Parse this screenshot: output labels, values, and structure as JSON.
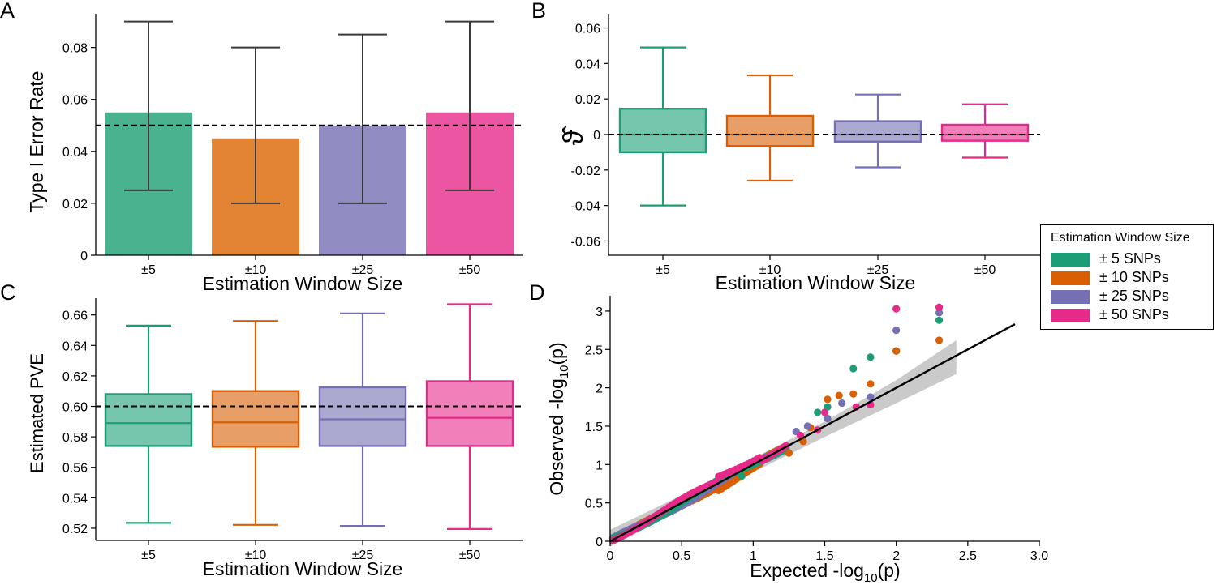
{
  "colors": {
    "green": "#1b9e77",
    "orange": "#d95f02",
    "purple": "#7570b3",
    "pink": "#e7298a",
    "green_fill": "#4bb290",
    "orange_fill": "#e38434",
    "purple_fill": "#918dc2",
    "pink_fill": "#ec55a1"
  },
  "chart_data": [
    {
      "panel": "A",
      "type": "bar",
      "xlabel": "Estimation Window Size",
      "ylabel": "Type I Error Rate",
      "categories": [
        "±5",
        "±10",
        "±25",
        "±50"
      ],
      "values": [
        0.055,
        0.045,
        0.05,
        0.055
      ],
      "error_low": [
        0.025,
        0.02,
        0.02,
        0.025
      ],
      "error_high": [
        0.09,
        0.08,
        0.085,
        0.09
      ],
      "ylim": [
        0,
        0.093
      ],
      "yticks": [
        0,
        0.02,
        0.04,
        0.06,
        0.08
      ],
      "ytick_labels": [
        "0",
        "0.02",
        "0.04",
        "0.06",
        "0.08"
      ],
      "reference_line": 0.05
    },
    {
      "panel": "B",
      "type": "box",
      "xlabel": "Estimation Window Size",
      "ylabel": "ϑ̂",
      "categories": [
        "±5",
        "±10",
        "±25",
        "±50"
      ],
      "boxes": [
        {
          "whisker_low": -0.04,
          "q1": -0.01,
          "median": 0.0,
          "q3": 0.0145,
          "whisker_high": 0.049
        },
        {
          "whisker_low": -0.026,
          "q1": -0.0065,
          "median": 0.0,
          "q3": 0.0105,
          "whisker_high": 0.0333
        },
        {
          "whisker_low": -0.0185,
          "q1": -0.004,
          "median": 0.0,
          "q3": 0.0075,
          "whisker_high": 0.0225
        },
        {
          "whisker_low": -0.013,
          "q1": -0.0035,
          "median": 0.0,
          "q3": 0.0055,
          "whisker_high": 0.017
        }
      ],
      "ylim": [
        -0.068,
        0.068
      ],
      "yticks": [
        -0.06,
        -0.04,
        -0.02,
        0,
        0.02,
        0.04,
        0.06
      ],
      "ytick_labels": [
        "-0.06",
        "-0.04",
        "-0.02",
        "0",
        "0.02",
        "0.04",
        "0.06"
      ],
      "reference_line": 0
    },
    {
      "panel": "C",
      "type": "box",
      "xlabel": "Estimation Window Size",
      "ylabel": "Estimated PVE",
      "categories": [
        "±5",
        "±10",
        "±25",
        "±50"
      ],
      "boxes": [
        {
          "whisker_low": 0.5235,
          "q1": 0.574,
          "median": 0.589,
          "q3": 0.608,
          "whisker_high": 0.653
        },
        {
          "whisker_low": 0.5222,
          "q1": 0.5735,
          "median": 0.5895,
          "q3": 0.61,
          "whisker_high": 0.656
        },
        {
          "whisker_low": 0.5215,
          "q1": 0.574,
          "median": 0.5915,
          "q3": 0.6125,
          "whisker_high": 0.661
        },
        {
          "whisker_low": 0.5195,
          "q1": 0.574,
          "median": 0.5925,
          "q3": 0.6165,
          "whisker_high": 0.667
        }
      ],
      "ylim": [
        0.512,
        0.671
      ],
      "yticks": [
        0.52,
        0.54,
        0.56,
        0.58,
        0.6,
        0.62,
        0.64,
        0.66
      ],
      "ytick_labels": [
        "0.52",
        "0.54",
        "0.56",
        "0.58",
        "0.60",
        "0.62",
        "0.64",
        "0.66"
      ],
      "reference_line": 0.6
    },
    {
      "panel": "D",
      "type": "scatter",
      "xlabel_main": "Expected -log",
      "ylabel_main": "Observed -log",
      "label_sub": "10",
      "label_tail": "(p)",
      "xlim": [
        0,
        3.0
      ],
      "ylim": [
        0,
        3.2
      ],
      "xticks": [
        0,
        0.5,
        1,
        1.5,
        2,
        2.5,
        3.0
      ],
      "xtick_labels": [
        "0",
        "0.5",
        "1",
        "1.5",
        "2",
        "2.5",
        "3.0"
      ],
      "yticks": [
        0,
        0.5,
        1,
        1.5,
        2,
        2.5,
        3
      ],
      "ytick_labels": [
        "0",
        "0.5",
        "1",
        "1.5",
        "2",
        "2.5",
        "3"
      ],
      "fit_line": {
        "x": [
          0,
          2.83
        ],
        "y": [
          0,
          2.83
        ]
      },
      "band": {
        "x": [
          0,
          0.5,
          1.0,
          1.5,
          2.0,
          2.42
        ],
        "lower": [
          -0.07,
          0.41,
          0.9,
          1.36,
          1.8,
          2.18
        ],
        "upper": [
          0.15,
          0.6,
          1.08,
          1.56,
          2.1,
          2.62
        ]
      },
      "series": [
        {
          "name": "± 5 SNPs",
          "color_key": "green",
          "x": [
            0.92,
            1.45,
            1.52,
            1.7,
            1.82,
            2.0,
            2.3
          ],
          "y": [
            0.85,
            1.68,
            1.75,
            2.25,
            2.4,
            2.48,
            2.88
          ]
        },
        {
          "name": "± 10 SNPs",
          "color_key": "orange",
          "x": [
            1.25,
            1.35,
            1.4,
            1.52,
            1.6,
            1.7,
            1.82,
            2.0,
            2.3
          ],
          "y": [
            1.15,
            1.3,
            1.48,
            1.85,
            1.9,
            1.92,
            2.05,
            2.48,
            2.62
          ]
        },
        {
          "name": "± 25 SNPs",
          "color_key": "purple",
          "x": [
            1.3,
            1.38,
            1.52,
            1.62,
            1.82,
            2.0,
            2.3
          ],
          "y": [
            1.43,
            1.5,
            1.6,
            1.8,
            1.88,
            2.75,
            2.98
          ]
        },
        {
          "name": "± 50 SNPs",
          "color_key": "pink",
          "x": [
            1.33,
            1.45,
            1.5,
            1.72,
            1.82,
            2.0,
            2.3
          ],
          "y": [
            1.38,
            1.45,
            1.68,
            1.75,
            1.78,
            3.03,
            3.05
          ]
        }
      ]
    }
  ],
  "panel_labels": {
    "a": "A",
    "b": "B",
    "c": "C",
    "d": "D"
  },
  "legend": {
    "title": "Estimation Window Size",
    "items": [
      {
        "label": "± 5 SNPs",
        "color": "#1b9e77"
      },
      {
        "label": "± 10 SNPs",
        "color": "#d95f02"
      },
      {
        "label": "± 25 SNPs",
        "color": "#7570b3"
      },
      {
        "label": "± 50 SNPs",
        "color": "#e7298a"
      }
    ]
  }
}
